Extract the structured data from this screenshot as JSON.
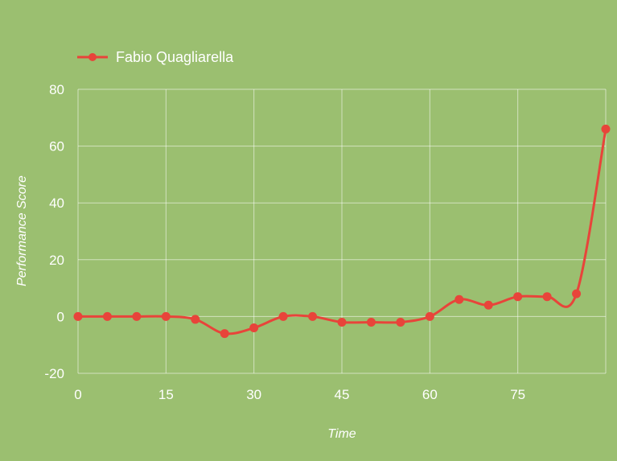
{
  "chart_data": {
    "type": "line",
    "xlabel": "Time",
    "ylabel": "Performance Score",
    "xlim": [
      0,
      90
    ],
    "ylim": [
      -20,
      80
    ],
    "x_ticks": [
      0,
      15,
      30,
      45,
      60,
      75
    ],
    "y_ticks": [
      -20,
      0,
      20,
      40,
      60,
      80
    ],
    "grid": true,
    "legend_position": "top-left",
    "series": [
      {
        "name": "Fabio Quagliarella",
        "color": "#e8443a",
        "x": [
          0,
          5,
          10,
          15,
          20,
          25,
          30,
          35,
          40,
          45,
          50,
          55,
          60,
          65,
          70,
          75,
          80,
          85,
          90
        ],
        "y": [
          0,
          0,
          0,
          0,
          -1,
          -6,
          -4,
          0,
          0,
          -2,
          -2,
          -2,
          0,
          6,
          4,
          7,
          7,
          8,
          66
        ]
      }
    ]
  }
}
